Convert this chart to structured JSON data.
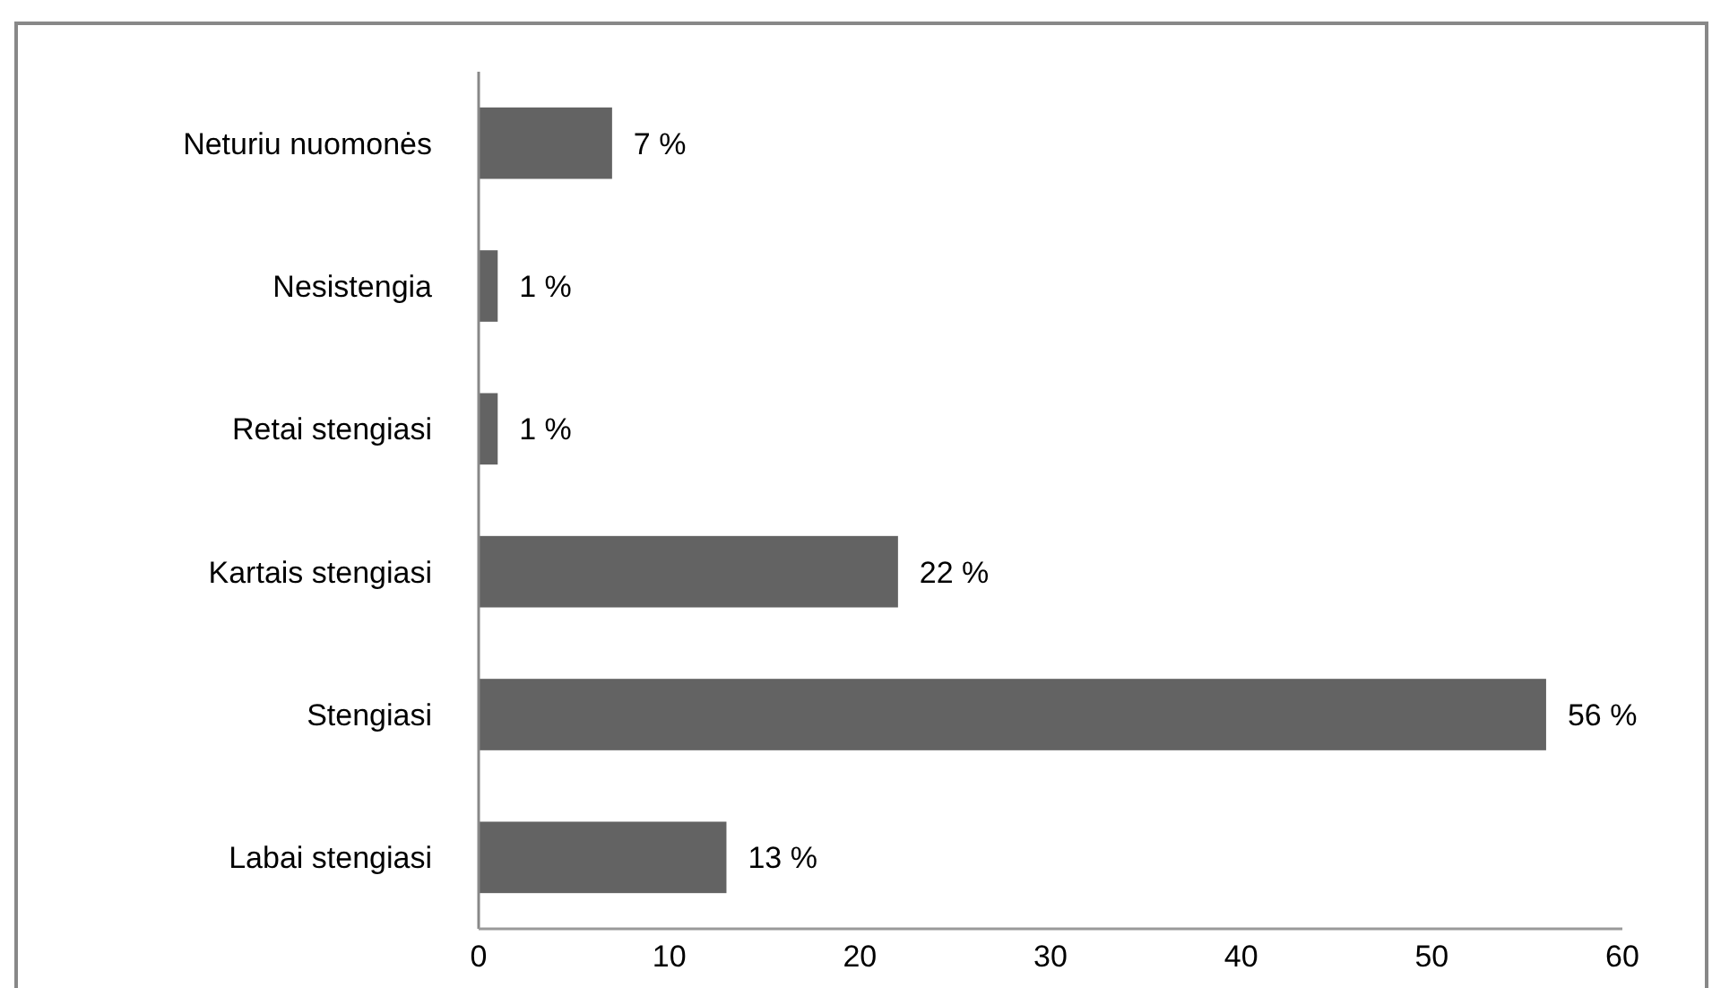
{
  "chart_data": {
    "type": "bar",
    "orientation": "horizontal",
    "categories": [
      "Neturiu nuomonės",
      "Nesistengia",
      "Retai stengiasi",
      "Kartais stengiasi",
      "Stengiasi",
      "Labai stengiasi"
    ],
    "values": [
      7,
      1,
      1,
      22,
      56,
      13
    ],
    "color": "#636363",
    "value_labels": [
      "7 %",
      "1 %",
      "1 %",
      "22 %",
      "56 %",
      "13 %"
    ],
    "xlim": [
      0,
      60
    ],
    "xticks": [
      0,
      10,
      20,
      30,
      40,
      50,
      60
    ]
  }
}
